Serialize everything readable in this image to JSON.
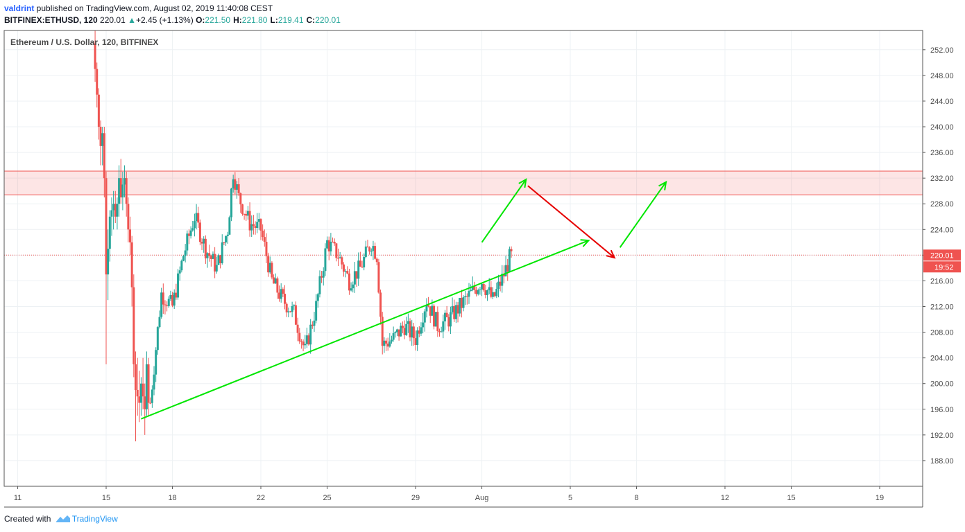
{
  "header": {
    "author": "valdrint",
    "published_text": " published on TradingView.com, August 02, 2019 11:40:08 CEST",
    "symbol": "BITFINEX:ETHUSD, 120",
    "last_price": "220.01",
    "change_arrow": "▲",
    "change": "+2.45 (+1.13%)",
    "open_label": "O:",
    "open": "221.50",
    "high_label": "H:",
    "high": "221.80",
    "low_label": "L:",
    "low": "219.41",
    "close_label": "C:",
    "close": "220.01"
  },
  "footer": {
    "created_with": "Created with",
    "brand": "TradingView"
  },
  "chart_data": {
    "type": "candlestick",
    "title": "Ethereum / U.S. Dollar, 120, BITFINEX",
    "xlabel": "",
    "ylabel": "",
    "x_ticks": [
      "11",
      "15",
      "18",
      "22",
      "25",
      "29",
      "Aug",
      "5",
      "8",
      "12",
      "15",
      "19"
    ],
    "y_ticks": [
      "188.00",
      "192.00",
      "196.00",
      "200.00",
      "204.00",
      "208.00",
      "212.00",
      "216.00",
      "220.00",
      "224.00",
      "228.00",
      "232.00",
      "236.00",
      "240.00",
      "244.00",
      "248.00",
      "252.00"
    ],
    "ylim": [
      184,
      255
    ],
    "xlim": [
      "2019-07-10 12:00",
      "2019-07-21 00:00"
    ],
    "grid": true,
    "price_label": {
      "value": 220.01,
      "text": "220.01",
      "countdown": "19:52",
      "color": "#ef5350"
    },
    "resistance_zone": {
      "low": 229.4,
      "high": 233.1,
      "color": "#ef5350"
    },
    "candle_colors": {
      "up": "#26a69a",
      "down": "#ef5350"
    },
    "candles": [
      {
        "t": "2019-07-14 12:00",
        "o": 253,
        "h": 257,
        "l": 247,
        "c": 249
      },
      {
        "t": "2019-07-14 14:00",
        "o": 249,
        "h": 250,
        "l": 243,
        "c": 245
      },
      {
        "t": "2019-07-14 16:00",
        "o": 245,
        "h": 246,
        "l": 238,
        "c": 240
      },
      {
        "t": "2019-07-14 18:00",
        "o": 240,
        "h": 241,
        "l": 234,
        "c": 237
      },
      {
        "t": "2019-07-14 20:00",
        "o": 237,
        "h": 240,
        "l": 234,
        "c": 239
      },
      {
        "t": "2019-07-14 22:00",
        "o": 239,
        "h": 240,
        "l": 229,
        "c": 232
      },
      {
        "t": "2019-07-15 00:00",
        "o": 232,
        "h": 233,
        "l": 203,
        "c": 217
      },
      {
        "t": "2019-07-15 02:00",
        "o": 217,
        "h": 224,
        "l": 213,
        "c": 221
      },
      {
        "t": "2019-07-15 04:00",
        "o": 221,
        "h": 227,
        "l": 219,
        "c": 226
      },
      {
        "t": "2019-07-15 06:00",
        "o": 226,
        "h": 229,
        "l": 223,
        "c": 227
      },
      {
        "t": "2019-07-15 08:00",
        "o": 227,
        "h": 230,
        "l": 224,
        "c": 228
      },
      {
        "t": "2019-07-15 10:00",
        "o": 228,
        "h": 230,
        "l": 225,
        "c": 226
      },
      {
        "t": "2019-07-15 12:00",
        "o": 226,
        "h": 229,
        "l": 224,
        "c": 228
      },
      {
        "t": "2019-07-15 14:00",
        "o": 228,
        "h": 234,
        "l": 226,
        "c": 232
      },
      {
        "t": "2019-07-15 16:00",
        "o": 232,
        "h": 235,
        "l": 228,
        "c": 229
      },
      {
        "t": "2019-07-15 18:00",
        "o": 229,
        "h": 233,
        "l": 227,
        "c": 231
      },
      {
        "t": "2019-07-15 20:00",
        "o": 231,
        "h": 234,
        "l": 229,
        "c": 232
      },
      {
        "t": "2019-07-15 22:00",
        "o": 232,
        "h": 233,
        "l": 226,
        "c": 228
      },
      {
        "t": "2019-07-16 00:00",
        "o": 228,
        "h": 229,
        "l": 222,
        "c": 224
      },
      {
        "t": "2019-07-16 02:00",
        "o": 224,
        "h": 226,
        "l": 220,
        "c": 222
      },
      {
        "t": "2019-07-16 04:00",
        "o": 222,
        "h": 223,
        "l": 212,
        "c": 215
      },
      {
        "t": "2019-07-16 06:00",
        "o": 215,
        "h": 217,
        "l": 201,
        "c": 203
      },
      {
        "t": "2019-07-16 08:00",
        "o": 203,
        "h": 205,
        "l": 191,
        "c": 199
      },
      {
        "t": "2019-07-16 10:00",
        "o": 199,
        "h": 204,
        "l": 195,
        "c": 198
      },
      {
        "t": "2019-07-16 12:00",
        "o": 198,
        "h": 202,
        "l": 194,
        "c": 197
      },
      {
        "t": "2019-07-16 14:00",
        "o": 197,
        "h": 201,
        "l": 195,
        "c": 200
      },
      {
        "t": "2019-07-16 16:00",
        "o": 200,
        "h": 204,
        "l": 196,
        "c": 198
      },
      {
        "t": "2019-07-16 18:00",
        "o": 198,
        "h": 200,
        "l": 192,
        "c": 196
      },
      {
        "t": "2019-07-16 20:00",
        "o": 196,
        "h": 205,
        "l": 195,
        "c": 203
      },
      {
        "t": "2019-07-16 22:00",
        "o": 203,
        "h": 204,
        "l": 195,
        "c": 197
      }
    ],
    "candles_range_note": "",
    "trendline": {
      "x1": "2019-07-16 14:00",
      "y1": 194.5,
      "x2": "2019-08-05 20:00",
      "y2": 222.3,
      "color": "#00e600"
    },
    "arrows": [
      {
        "x1": "2019-08-01 00:00",
        "y1": 222.0,
        "x2": "2019-08-03 00:00",
        "y2": 231.8,
        "color": "#00e600"
      },
      {
        "x1": "2019-08-03 02:00",
        "y1": 230.8,
        "x2": "2019-08-07 00:00",
        "y2": 219.6,
        "color": "#e60000"
      },
      {
        "x1": "2019-08-07 06:00",
        "y1": 221.2,
        "x2": "2019-08-09 08:00",
        "y2": 231.4,
        "color": "#00e600"
      }
    ]
  }
}
